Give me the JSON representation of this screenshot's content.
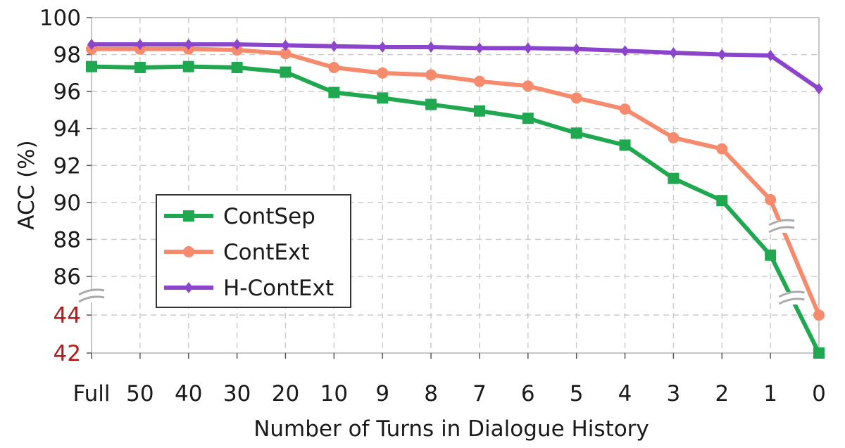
{
  "chart_data": {
    "type": "line",
    "xlabel": "Number of Turns in Dialogue History",
    "ylabel": "ACC (%)",
    "x": [
      "Full",
      "50",
      "40",
      "30",
      "20",
      "10",
      "9",
      "8",
      "7",
      "6",
      "5",
      "4",
      "3",
      "2",
      "1",
      "0"
    ],
    "y_ticks_upper": [
      "100",
      "98",
      "96",
      "94",
      "92",
      "90",
      "88",
      "86"
    ],
    "y_ticks_lower": [
      "44",
      "42"
    ],
    "ylim_upper": [
      86,
      100
    ],
    "ylim_lower": [
      42,
      44
    ],
    "axis_break": "between 86 and 44",
    "grid": true,
    "legend_position": "center-left",
    "series": [
      {
        "name": "ContSep",
        "color": "#1fa84f",
        "marker": "square",
        "values": [
          97.35,
          97.3,
          97.35,
          97.3,
          97.05,
          95.95,
          95.65,
          95.3,
          94.95,
          94.55,
          93.75,
          93.1,
          91.3,
          90.1,
          87.15,
          42.0
        ]
      },
      {
        "name": "ContExt",
        "color": "#f58a6c",
        "marker": "circle",
        "values": [
          98.3,
          98.3,
          98.3,
          98.25,
          98.05,
          97.3,
          97.0,
          96.9,
          96.55,
          96.3,
          95.65,
          95.05,
          93.5,
          92.9,
          90.15,
          44.0
        ]
      },
      {
        "name": "H-ContExt",
        "color": "#8b44cc",
        "marker": "diamond",
        "values": [
          98.55,
          98.55,
          98.55,
          98.55,
          98.5,
          98.45,
          98.4,
          98.4,
          98.35,
          98.35,
          98.3,
          98.2,
          98.1,
          98.0,
          97.95,
          96.15
        ]
      }
    ]
  }
}
